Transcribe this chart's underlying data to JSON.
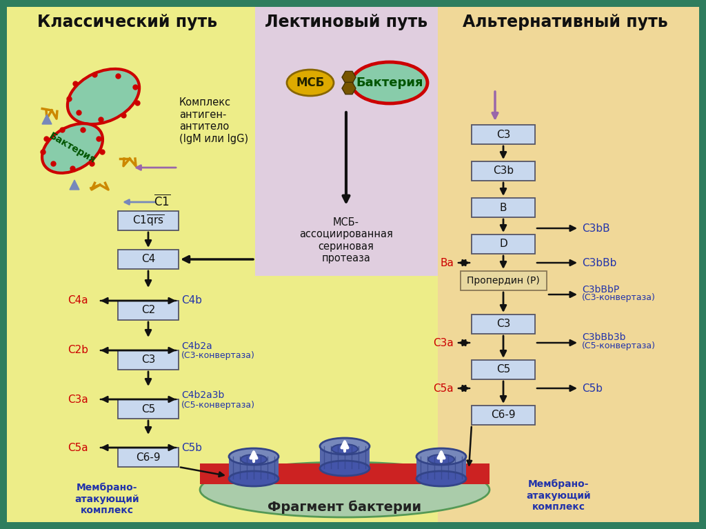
{
  "title_classical": "Классический путь",
  "title_lectin": "Лектиновый путь",
  "title_alternative": "Альтернативный путь",
  "bg_outer": "#2E7D5E",
  "bg_classical": "#EDED88",
  "bg_lectin": "#E0CEDF",
  "bg_alternative": "#F0D898",
  "box_color": "#C8D8EE",
  "box_edge": "#555566",
  "properdyn_bg": "#E8D8A0",
  "arrow_color": "#111111",
  "red_text": "#CC0000",
  "blue_text": "#2233AA",
  "dark_text": "#111111",
  "title_color": "#111111",
  "bacteria_fill": "#88CCAA",
  "bacteria_edge": "#CC0000",
  "bacteria_text": "#005500",
  "msb_fill": "#DDAA00",
  "msb_edge": "#886600",
  "purple_arrow": "#9966AA",
  "mac_outer": "#7788BB",
  "mac_inner": "#5566AA",
  "mac_mid": "#4455AA",
  "mac_ring": "#334488",
  "fragment_fill": "#AACCAA",
  "fragment_edge": "#559955",
  "membrane_fill": "#CC2222"
}
